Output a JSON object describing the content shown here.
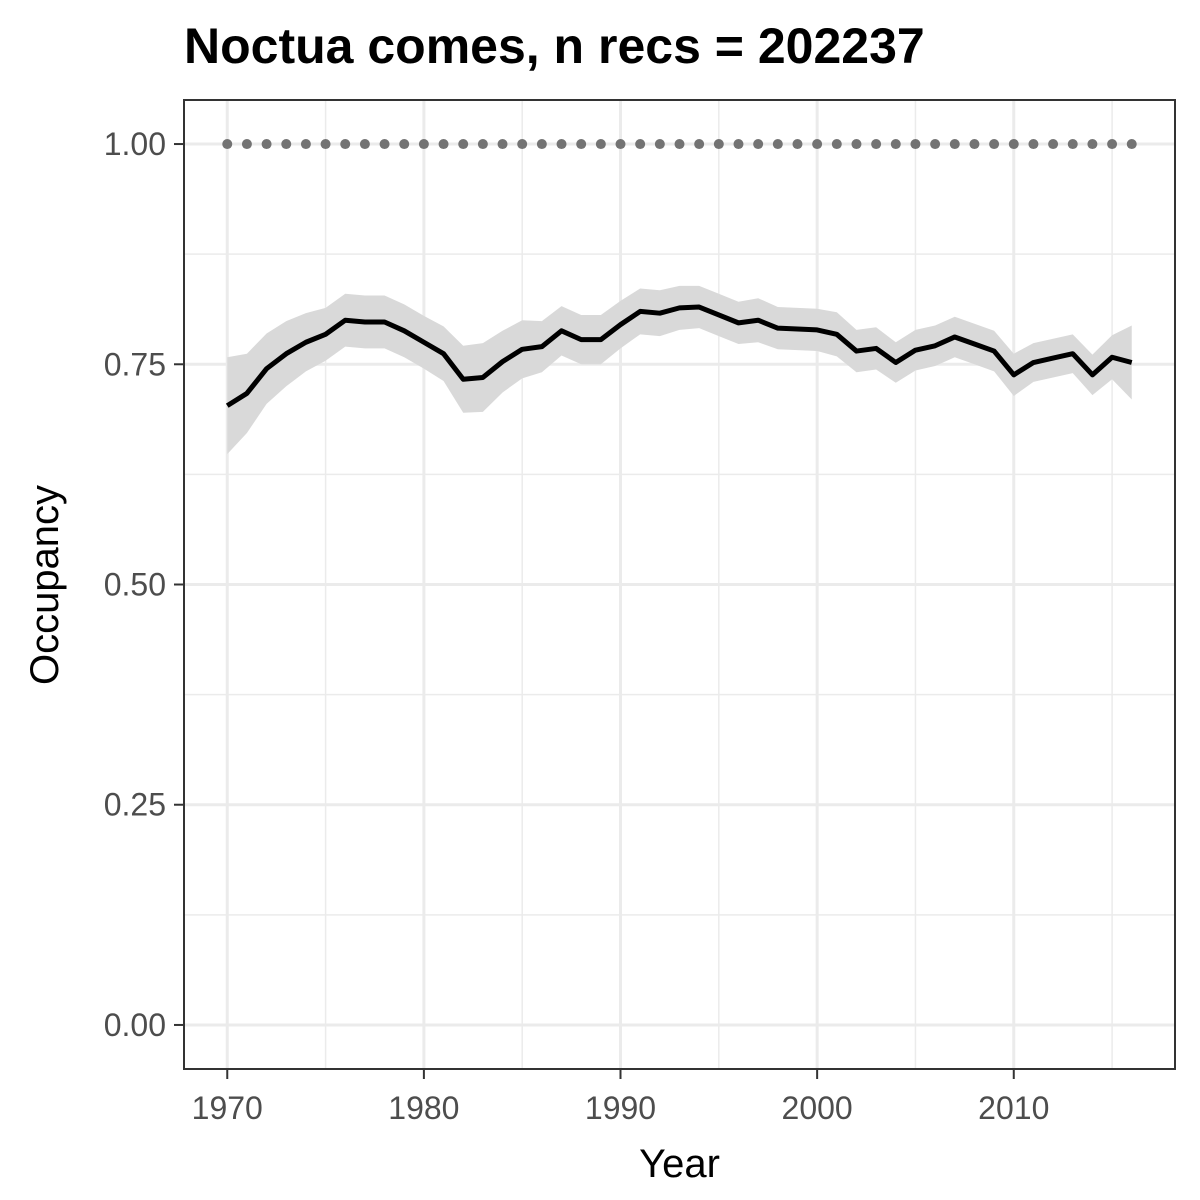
{
  "chart_data": {
    "type": "line",
    "title": "Noctua comes, n recs = 202237",
    "xlabel": "Year",
    "ylabel": "Occupancy",
    "xlim": [
      1967.8,
      2018.2
    ],
    "ylim": [
      -0.05,
      1.05
    ],
    "x_ticks": [
      1970,
      1980,
      1990,
      2000,
      2010
    ],
    "x_tick_labels": [
      "1970",
      "1980",
      "1990",
      "2000",
      "2010"
    ],
    "y_ticks": [
      0,
      0.25,
      0.5,
      0.75,
      1.0
    ],
    "y_tick_labels": [
      "0.00",
      "0.25",
      "0.50",
      "0.75",
      "1.00"
    ],
    "x_minor_ticks": [
      1975,
      1985,
      1995,
      2005,
      2015
    ],
    "y_minor_ticks": [
      0.125,
      0.375,
      0.625,
      0.875
    ],
    "grid": true,
    "colors": {
      "line": "#000000",
      "ribbon": "#d9d9d9",
      "reference": "#737373",
      "grid": "#ebebeb",
      "panel_border": "#333333"
    },
    "series": [
      {
        "kind": "mean-line",
        "x": [
          1970,
          1971,
          1972,
          1973,
          1974,
          1975,
          1976,
          1977,
          1978,
          1979,
          1980,
          1981,
          1982,
          1983,
          1984,
          1985,
          1986,
          1987,
          1988,
          1989,
          1990,
          1991,
          1992,
          1993,
          1994,
          1995,
          1996,
          1997,
          1998,
          1999,
          2000,
          2001,
          2002,
          2003,
          2004,
          2005,
          2006,
          2007,
          2008,
          2009,
          2010,
          2011,
          2012,
          2013,
          2014,
          2015,
          2016
        ],
        "y": [
          0.703,
          0.717,
          0.745,
          0.762,
          0.775,
          0.784,
          0.8,
          0.798,
          0.798,
          0.788,
          0.775,
          0.762,
          0.733,
          0.735,
          0.753,
          0.767,
          0.77,
          0.788,
          0.778,
          0.778,
          0.795,
          0.81,
          0.808,
          0.814,
          0.815,
          0.806,
          0.797,
          0.8,
          0.791,
          0.79,
          0.789,
          0.784,
          0.765,
          0.768,
          0.752,
          0.766,
          0.771,
          0.781,
          0.773,
          0.765,
          0.738,
          0.752,
          0.757,
          0.762,
          0.738,
          0.758,
          0.752
        ],
        "lower": [
          0.648,
          0.672,
          0.705,
          0.725,
          0.742,
          0.754,
          0.77,
          0.768,
          0.768,
          0.758,
          0.745,
          0.731,
          0.695,
          0.696,
          0.718,
          0.734,
          0.741,
          0.76,
          0.75,
          0.75,
          0.768,
          0.784,
          0.782,
          0.789,
          0.791,
          0.782,
          0.773,
          0.775,
          0.767,
          0.766,
          0.765,
          0.759,
          0.741,
          0.744,
          0.729,
          0.743,
          0.748,
          0.758,
          0.75,
          0.742,
          0.714,
          0.73,
          0.735,
          0.74,
          0.715,
          0.733,
          0.71
        ],
        "upper": [
          0.758,
          0.762,
          0.785,
          0.799,
          0.808,
          0.814,
          0.83,
          0.828,
          0.828,
          0.818,
          0.805,
          0.793,
          0.771,
          0.774,
          0.788,
          0.8,
          0.799,
          0.816,
          0.806,
          0.806,
          0.822,
          0.836,
          0.834,
          0.839,
          0.839,
          0.83,
          0.821,
          0.825,
          0.815,
          0.814,
          0.813,
          0.809,
          0.789,
          0.792,
          0.775,
          0.789,
          0.794,
          0.804,
          0.796,
          0.788,
          0.762,
          0.774,
          0.779,
          0.784,
          0.761,
          0.783,
          0.794
        ]
      },
      {
        "kind": "reference-points",
        "x": [
          1970,
          1971,
          1972,
          1973,
          1974,
          1975,
          1976,
          1977,
          1978,
          1979,
          1980,
          1981,
          1982,
          1983,
          1984,
          1985,
          1986,
          1987,
          1988,
          1989,
          1990,
          1991,
          1992,
          1993,
          1994,
          1995,
          1996,
          1997,
          1998,
          1999,
          2000,
          2001,
          2002,
          2003,
          2004,
          2005,
          2006,
          2007,
          2008,
          2009,
          2010,
          2011,
          2012,
          2013,
          2014,
          2015,
          2016
        ],
        "y": [
          1,
          1,
          1,
          1,
          1,
          1,
          1,
          1,
          1,
          1,
          1,
          1,
          1,
          1,
          1,
          1,
          1,
          1,
          1,
          1,
          1,
          1,
          1,
          1,
          1,
          1,
          1,
          1,
          1,
          1,
          1,
          1,
          1,
          1,
          1,
          1,
          1,
          1,
          1,
          1,
          1,
          1,
          1,
          1,
          1,
          1,
          1
        ]
      }
    ]
  }
}
